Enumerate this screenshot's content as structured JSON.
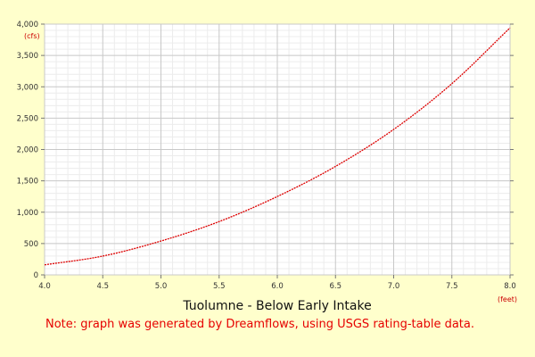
{
  "chart_data": {
    "type": "line",
    "title": "Tuolumne - Below Early Intake",
    "xlabel": "(feet)",
    "ylabel": "(cfs)",
    "xlim": [
      4.0,
      8.0
    ],
    "ylim": [
      0,
      4000
    ],
    "x_ticks": [
      "4.0",
      "4.5",
      "5.0",
      "5.5",
      "6.0",
      "6.5",
      "7.0",
      "7.5",
      "8.0"
    ],
    "y_ticks": [
      "0",
      "500",
      "1,000",
      "1,500",
      "2,000",
      "2,500",
      "3,000",
      "3,500",
      "4,000"
    ],
    "grid": true,
    "legend": "none",
    "series": [
      {
        "color": "#dd0000",
        "points": [
          {
            "x": 4.0,
            "y": 160
          },
          {
            "x": 4.5,
            "y": 300
          },
          {
            "x": 5.0,
            "y": 540
          },
          {
            "x": 5.5,
            "y": 850
          },
          {
            "x": 6.0,
            "y": 1250
          },
          {
            "x": 6.5,
            "y": 1730
          },
          {
            "x": 7.0,
            "y": 2320
          },
          {
            "x": 7.5,
            "y": 3050
          },
          {
            "x": 8.0,
            "y": 3940
          }
        ]
      }
    ]
  },
  "note": "Note: graph was generated by Dreamflows, using USGS rating-table data.",
  "colors": {
    "background": "#ffffcc",
    "plot_background": "#ffffff",
    "major_grid": "#c8c8c8",
    "minor_grid": "#ececec",
    "line": "#dd0000",
    "note_text": "#e60000"
  }
}
